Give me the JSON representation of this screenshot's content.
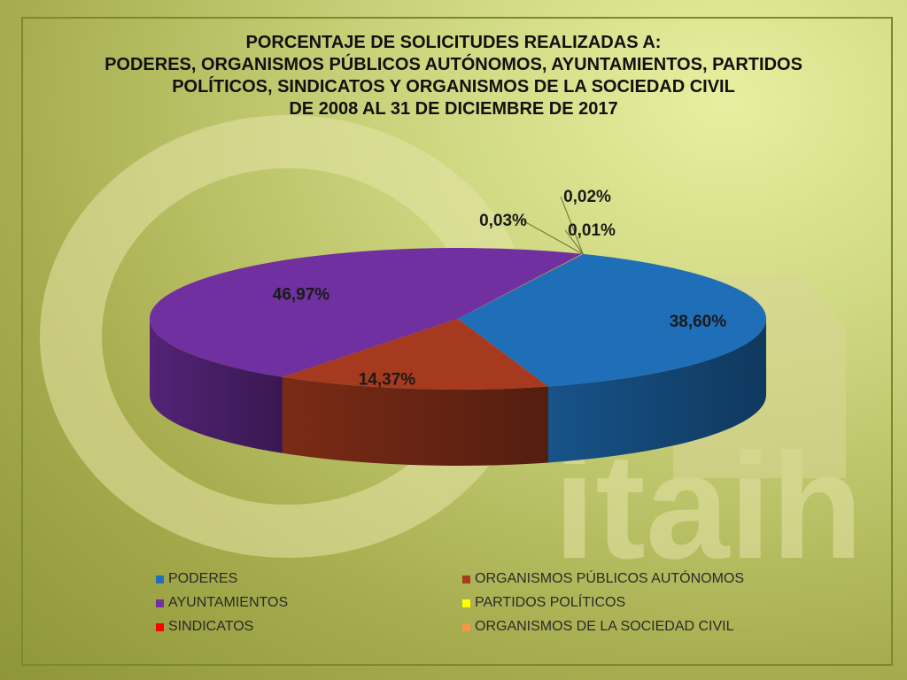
{
  "title_lines": [
    "PORCENTAJE DE SOLICITUDES REALIZADAS A:",
    "PODERES, ORGANISMOS PÚBLICOS AUTÓNOMOS, AYUNTAMIENTOS, PARTIDOS",
    "POLÍTICOS, SINDICATOS Y ORGANISMOS DE LA SOCIEDAD CIVIL",
    "DE 2008 AL 31 DE DICIEMBRE DE 2017"
  ],
  "watermark": {
    "text": "itaih"
  },
  "chart_data": {
    "type": "pie",
    "title": "PORCENTAJE DE SOLICITUDES REALIZADAS A: PODERES, ORGANISMOS PÚBLICOS AUTÓNOMOS, AYUNTAMIENTOS, PARTIDOS POLÍTICOS, SINDICATOS Y ORGANISMOS DE LA SOCIEDAD CIVIL DE 2008 AL 31 DE DICIEMBRE DE 2017",
    "legend_position": "bottom",
    "slices": [
      {
        "name": "PODERES",
        "value": 38.6,
        "label": "38,60%",
        "color": "#1F6FB8"
      },
      {
        "name": "ORGANISMOS PÚBLICOS AUTÓNOMOS",
        "value": 14.37,
        "label": "14,37%",
        "color": "#A63A1E"
      },
      {
        "name": "AYUNTAMIENTOS",
        "value": 46.97,
        "label": "46,97%",
        "color": "#7030A0"
      },
      {
        "name": "PARTIDOS POLÍTICOS",
        "value": 0.03,
        "label": "0,03%",
        "color": "#FFFF00"
      },
      {
        "name": "SINDICATOS",
        "value": 0.02,
        "label": "0,02%",
        "color": "#FF0000"
      },
      {
        "name": "ORGANISMOS DE LA SOCIEDAD CIVIL",
        "value": 0.01,
        "label": "0,01%",
        "color": "#F79646"
      }
    ]
  }
}
